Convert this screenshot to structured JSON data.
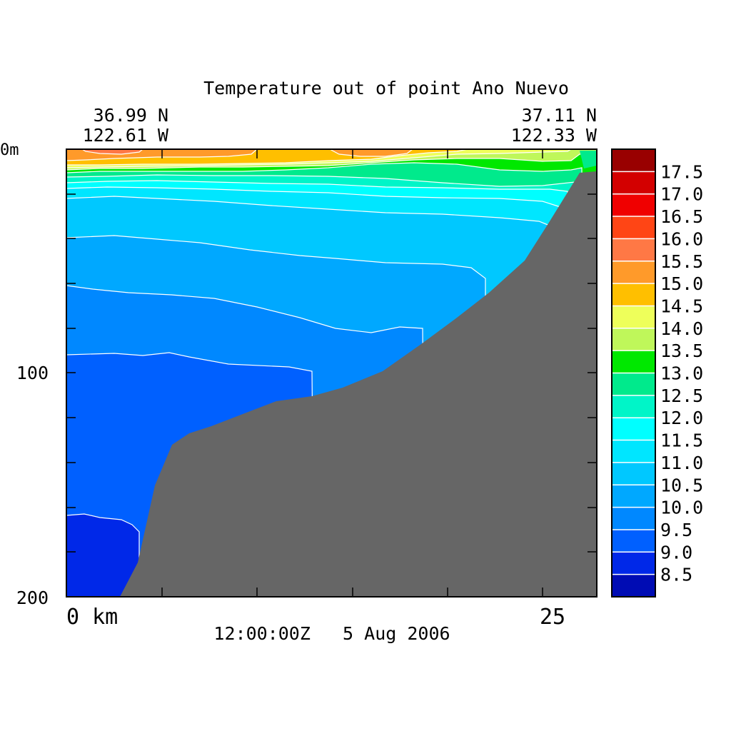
{
  "chart_data": {
    "type": "heatmap",
    "title": "Temperature out of point Ano Nuevo",
    "left_coord": {
      "lat": "36.99 N",
      "lon": "122.61 W"
    },
    "right_coord": {
      "lat": "37.11 N",
      "lon": "122.33 W"
    },
    "y_axis": {
      "ticks": [
        "0m",
        "100",
        "200"
      ],
      "range": [
        0,
        200
      ],
      "inverted": true
    },
    "x_axis": {
      "ticks": [
        "0 km",
        "25"
      ],
      "range": [
        0,
        28
      ]
    },
    "timestamp": "12:00:00Z   5 Aug 2006",
    "colorbar": {
      "labels": [
        "17.5",
        "17.0",
        "16.5",
        "16.0",
        "15.5",
        "15.0",
        "14.5",
        "14.0",
        "13.5",
        "13.0",
        "12.5",
        "12.0",
        "11.5",
        "11.0",
        "10.5",
        "10.0",
        "9.5",
        "9.0",
        "8.5"
      ],
      "colors": [
        "#990000",
        "#d30000",
        "#f00000",
        "#ff4515",
        "#ff7845",
        "#ff9a2a",
        "#ffbf00",
        "#eeff5a",
        "#bff75a",
        "#00e800",
        "#00ea8c",
        "#00f5c8",
        "#00ffff",
        "#00e6ff",
        "#00c8ff",
        "#00a8ff",
        "#0088ff",
        "#0060ff",
        "#0028e8",
        "#000cb4"
      ]
    },
    "land_color": "#666666"
  }
}
